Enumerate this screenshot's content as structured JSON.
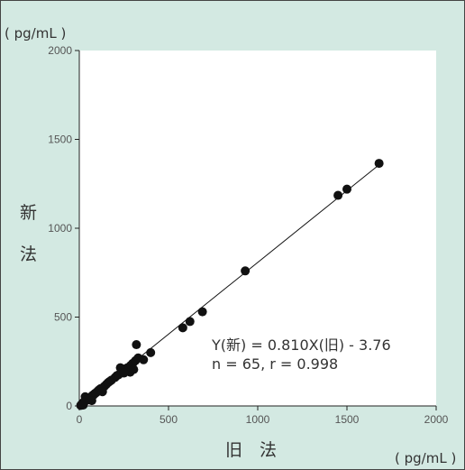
{
  "colors": {
    "background": "#d3e9e2",
    "plot_area": "#ffffff",
    "marker": "#111111",
    "regression_line": "#111111",
    "frame_border": "#444444"
  },
  "chart_data": {
    "type": "scatter",
    "xlabel": "旧　法",
    "ylabel": "新法",
    "x_unit": "( pg/mL )",
    "y_unit": "( pg/mL )",
    "xlim": [
      0,
      2000
    ],
    "ylim": [
      0,
      2000
    ],
    "x_ticks": [
      0,
      500,
      1000,
      1500,
      2000
    ],
    "y_ticks": [
      0,
      500,
      1000,
      1500,
      2000
    ],
    "grid": false,
    "regression": {
      "slope": 0.81,
      "intercept": -3.76,
      "x_range": [
        0,
        1700
      ]
    },
    "annotations": [
      "Y(新) = 0.810X(旧) - 3.76",
      "n = 65, r = 0.998"
    ],
    "points": [
      {
        "x": 8,
        "y": 3
      },
      {
        "x": 12,
        "y": 8
      },
      {
        "x": 15,
        "y": 10
      },
      {
        "x": 18,
        "y": 14
      },
      {
        "x": 20,
        "y": 18
      },
      {
        "x": 22,
        "y": 5
      },
      {
        "x": 25,
        "y": 20
      },
      {
        "x": 28,
        "y": 24
      },
      {
        "x": 30,
        "y": 26
      },
      {
        "x": 33,
        "y": 52
      },
      {
        "x": 35,
        "y": 28
      },
      {
        "x": 38,
        "y": 32
      },
      {
        "x": 40,
        "y": 35
      },
      {
        "x": 42,
        "y": 36
      },
      {
        "x": 45,
        "y": 38
      },
      {
        "x": 48,
        "y": 40
      },
      {
        "x": 50,
        "y": 42
      },
      {
        "x": 55,
        "y": 45
      },
      {
        "x": 60,
        "y": 48
      },
      {
        "x": 65,
        "y": 50
      },
      {
        "x": 70,
        "y": 55
      },
      {
        "x": 75,
        "y": 60
      },
      {
        "x": 80,
        "y": 62
      },
      {
        "x": 85,
        "y": 68
      },
      {
        "x": 90,
        "y": 72
      },
      {
        "x": 95,
        "y": 75
      },
      {
        "x": 100,
        "y": 80
      },
      {
        "x": 105,
        "y": 85
      },
      {
        "x": 110,
        "y": 90
      },
      {
        "x": 115,
        "y": 92
      },
      {
        "x": 120,
        "y": 98
      },
      {
        "x": 130,
        "y": 100
      },
      {
        "x": 140,
        "y": 110
      },
      {
        "x": 150,
        "y": 120
      },
      {
        "x": 160,
        "y": 130
      },
      {
        "x": 170,
        "y": 138
      },
      {
        "x": 180,
        "y": 145
      },
      {
        "x": 200,
        "y": 160
      },
      {
        "x": 210,
        "y": 170
      },
      {
        "x": 220,
        "y": 175
      },
      {
        "x": 230,
        "y": 215
      },
      {
        "x": 240,
        "y": 190
      },
      {
        "x": 250,
        "y": 200
      },
      {
        "x": 260,
        "y": 210
      },
      {
        "x": 270,
        "y": 215
      },
      {
        "x": 280,
        "y": 220
      },
      {
        "x": 285,
        "y": 190
      },
      {
        "x": 290,
        "y": 230
      },
      {
        "x": 300,
        "y": 240
      },
      {
        "x": 305,
        "y": 205
      },
      {
        "x": 315,
        "y": 255
      },
      {
        "x": 320,
        "y": 345
      },
      {
        "x": 360,
        "y": 260
      },
      {
        "x": 400,
        "y": 300
      },
      {
        "x": 580,
        "y": 440
      },
      {
        "x": 620,
        "y": 475
      },
      {
        "x": 690,
        "y": 530
      },
      {
        "x": 930,
        "y": 760
      },
      {
        "x": 1450,
        "y": 1185
      },
      {
        "x": 1500,
        "y": 1220
      },
      {
        "x": 1680,
        "y": 1365
      },
      {
        "x": 70,
        "y": 30
      },
      {
        "x": 130,
        "y": 80
      },
      {
        "x": 250,
        "y": 185
      },
      {
        "x": 330,
        "y": 270
      }
    ]
  }
}
